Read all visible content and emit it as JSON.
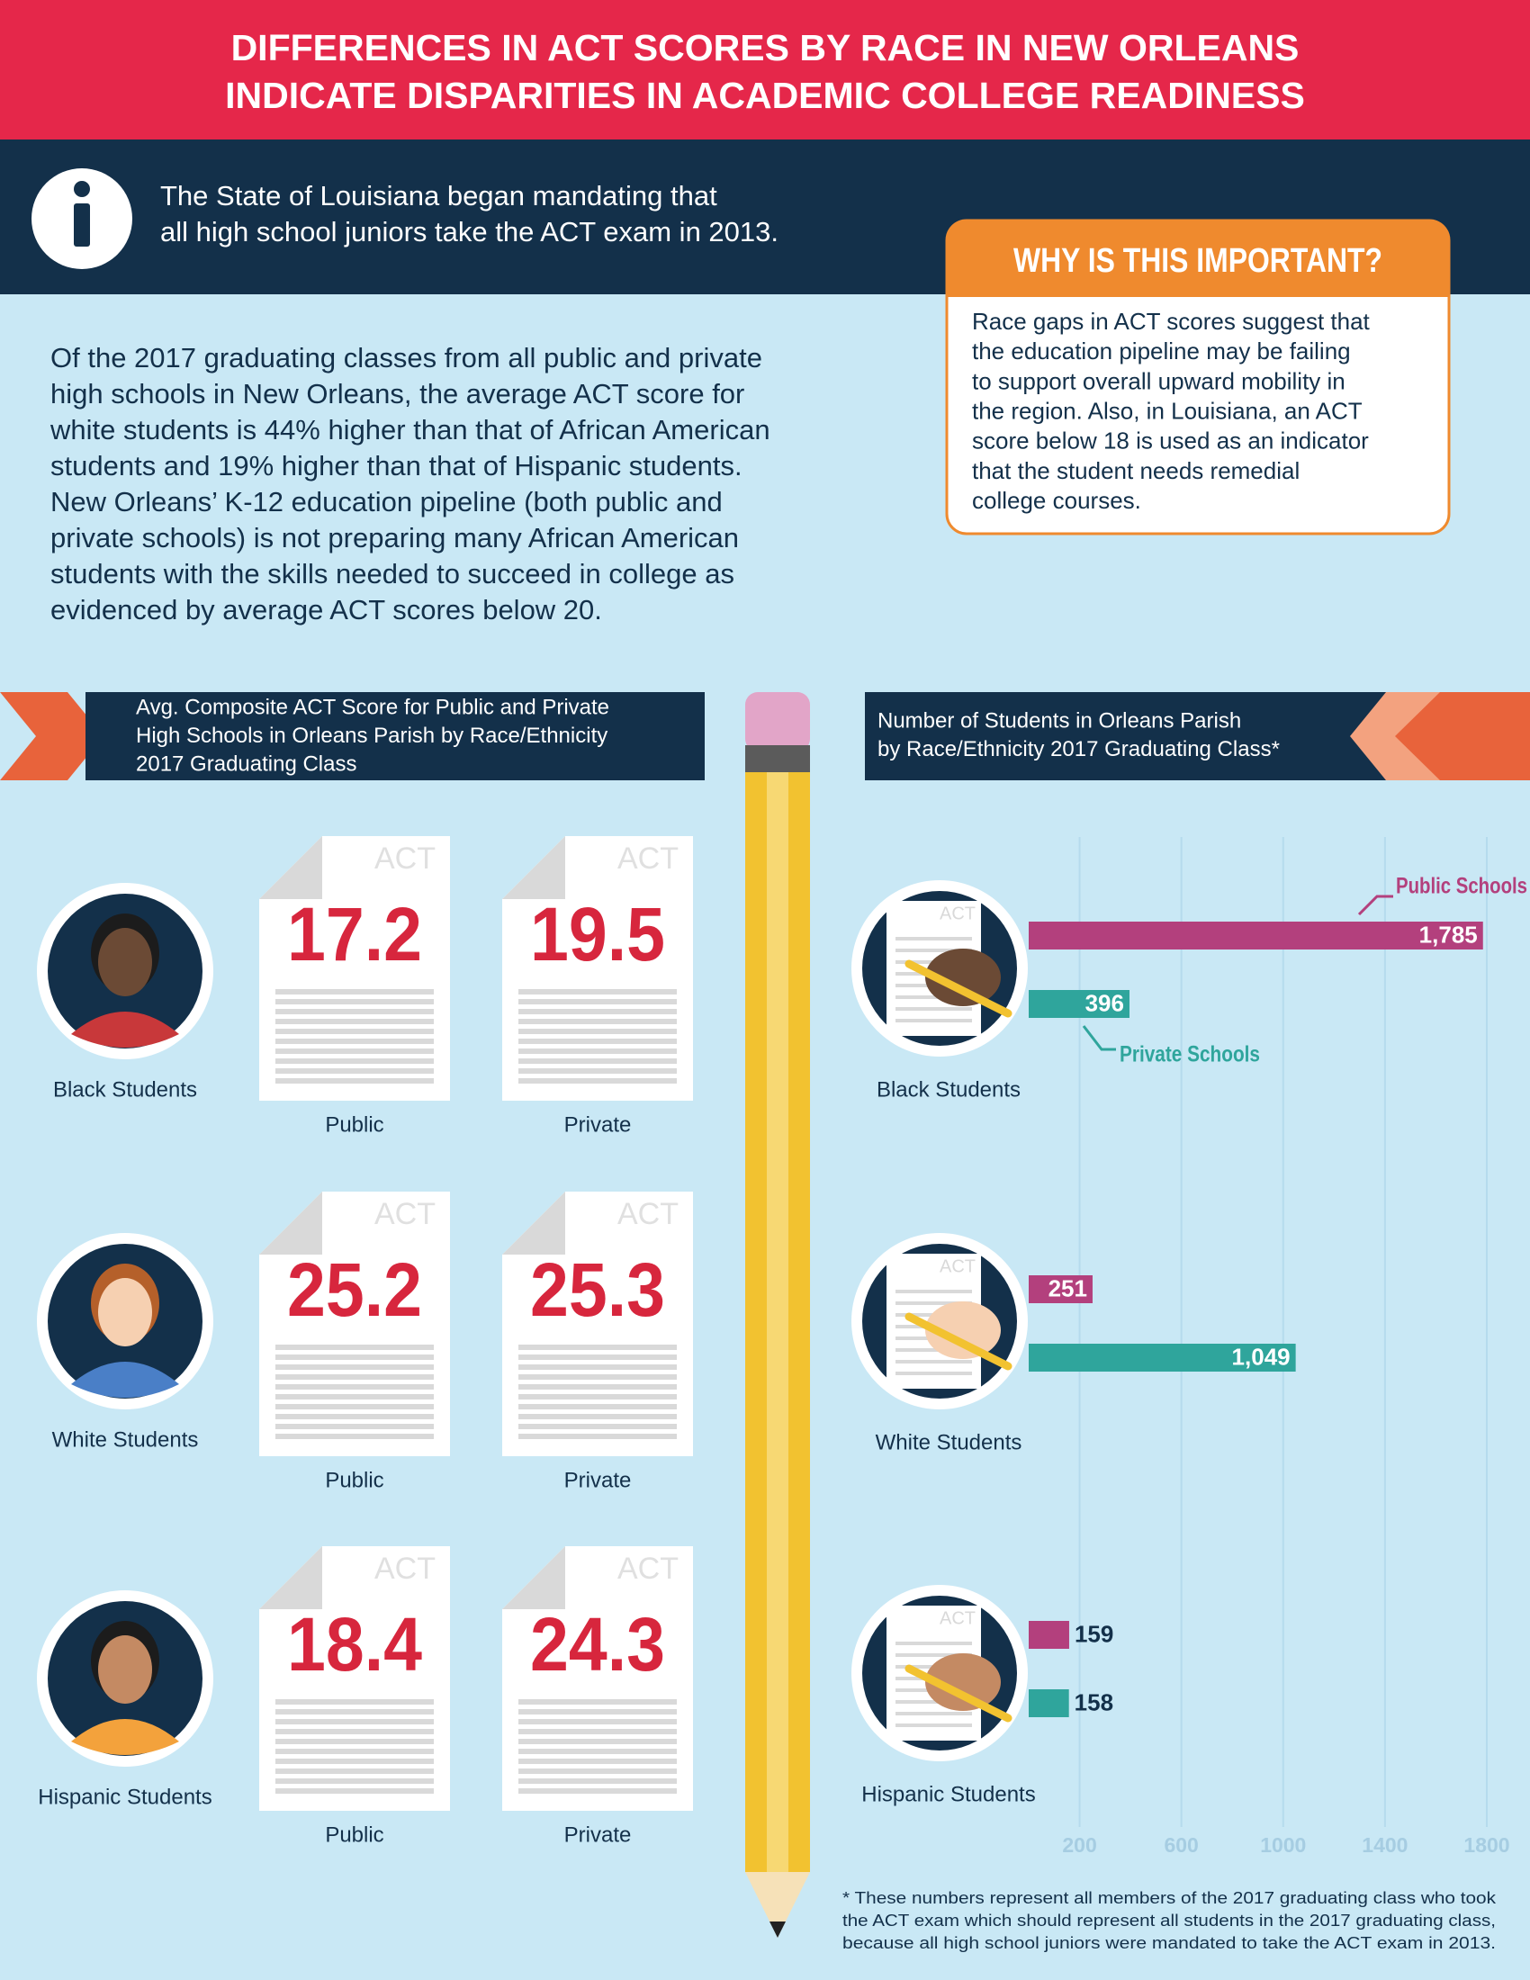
{
  "header": {
    "title_lines": [
      "DIFFERENCES IN ACT SCORES BY RACE IN NEW ORLEANS",
      "INDICATE DISPARITIES IN ACADEMIC COLLEGE READINESS"
    ]
  },
  "info": {
    "lines": [
      "The State of Louisiana began mandating that",
      "all high school juniors take the ACT exam in 2013."
    ]
  },
  "intro": {
    "lines": [
      "Of the 2017 graduating classes from all public and private",
      "high schools in New Orleans, the average ACT score for",
      "white students is 44% higher than that of African American",
      "students and 19% higher than that of Hispanic students.",
      "New Orleans’ K-12 education pipeline (both public and",
      "private schools) is not preparing many African American",
      "students with the skills needed to succeed in college as",
      "evidenced by average ACT scores below 20."
    ]
  },
  "why": {
    "title": "WHY IS THIS IMPORTANT?",
    "lines": [
      "Race gaps in ACT scores suggest that",
      "the education pipeline may be failing",
      "to support overall upward mobility in",
      "the region. Also, in Louisiana, an ACT",
      "score below 18 is used as an indicator",
      "that the student needs remedial",
      "college courses."
    ]
  },
  "left_panel": {
    "title_lines": [
      "Avg. Composite ACT Score for Public and Private",
      "High Schools in Orleans Parish by Race/Ethnicity",
      "2017 Graduating Class"
    ],
    "doc_label": "ACT",
    "columns": [
      "Public",
      "Private"
    ],
    "rows": [
      {
        "group": "Black Students",
        "scores": [
          17.2,
          19.5
        ]
      },
      {
        "group": "White Students",
        "scores": [
          25.2,
          25.3
        ]
      },
      {
        "group": "Hispanic Students",
        "scores": [
          18.4,
          24.3
        ]
      }
    ]
  },
  "chart_data": {
    "type": "bar",
    "orientation": "horizontal",
    "title_lines": [
      "Number of Students in Orleans Parish",
      "by Race/Ethnicity 2017 Graduating Class*"
    ],
    "categories": [
      "Black Students",
      "White Students",
      "Hispanic Students"
    ],
    "series": [
      {
        "name": "Public Schools",
        "color": "#b3407d",
        "values": [
          1785,
          251,
          159
        ],
        "value_labels": [
          "1,785",
          "251",
          "159"
        ]
      },
      {
        "name": "Private Schools",
        "color": "#2fa59c",
        "values": [
          396,
          1049,
          158
        ],
        "value_labels": [
          "396",
          "1,049",
          "158"
        ]
      }
    ],
    "xlim": [
      0,
      1800
    ],
    "xticks": [
      200,
      600,
      1000,
      1400,
      1800
    ],
    "grid": true,
    "footnote_lines": [
      "* These numbers represent all members of the 2017 graduating class who took",
      "the ACT exam which should represent all students in the 2017 graduating class,",
      "because all high school juniors were mandated to take the ACT exam in 2013."
    ]
  }
}
